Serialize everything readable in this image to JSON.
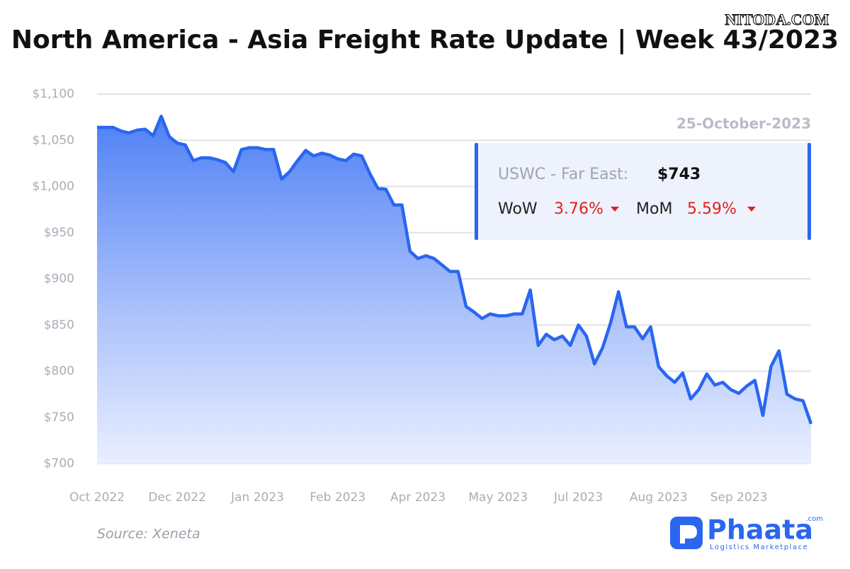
{
  "chart_data": {
    "type": "area",
    "title": "North America - Asia Freight Rate Update | Week 43/2023",
    "categories": [
      "Oct 2022",
      null,
      null,
      null,
      null,
      null,
      null,
      null,
      null,
      null,
      "Dec 2022",
      null,
      null,
      null,
      null,
      null,
      null,
      null,
      null,
      null,
      "Jan 2023",
      null,
      null,
      null,
      null,
      null,
      null,
      null,
      null,
      null,
      "Feb 2023",
      null,
      null,
      null,
      null,
      null,
      null,
      null,
      null,
      null,
      "Apr 2023",
      null,
      null,
      null,
      null,
      null,
      null,
      null,
      null,
      null,
      "May 2023",
      null,
      null,
      null,
      null,
      null,
      null,
      null,
      null,
      null,
      "Jul 2023",
      null,
      null,
      null,
      null,
      null,
      null,
      null,
      null,
      null,
      "Aug 2023",
      null,
      null,
      null,
      null,
      null,
      null,
      null,
      null,
      null,
      "Sep 2023",
      null,
      null,
      null,
      null,
      null,
      null,
      null,
      null,
      null
    ],
    "values": [
      1064,
      1064,
      1064,
      1060,
      1058,
      1061,
      1062,
      1055,
      1076,
      1054,
      1047,
      1045,
      1028,
      1031,
      1031,
      1029,
      1026,
      1016,
      1040,
      1042,
      1042,
      1040,
      1040,
      1008,
      1016,
      1028,
      1039,
      1033,
      1036,
      1034,
      1030,
      1028,
      1035,
      1033,
      1014,
      998,
      997,
      980,
      980,
      930,
      922,
      925,
      922,
      915,
      908,
      908,
      870,
      864,
      857,
      862,
      860,
      860,
      862,
      862,
      888,
      828,
      840,
      834,
      838,
      828,
      850,
      838,
      808,
      825,
      852,
      886,
      848,
      848,
      835,
      848,
      805,
      795,
      788,
      798,
      770,
      780,
      797,
      785,
      788,
      780,
      776,
      784,
      790,
      752,
      805,
      822,
      775,
      770,
      768,
      743
    ],
    "color": "#2a66f0",
    "ylim": [
      700,
      1100
    ],
    "yticks": [
      {
        "value": 700,
        "label": "$700"
      },
      {
        "value": 750,
        "label": "$750"
      },
      {
        "value": 800,
        "label": "$800"
      },
      {
        "value": 850,
        "label": "$850"
      },
      {
        "value": 900,
        "label": "$900"
      },
      {
        "value": 950,
        "label": "$950"
      },
      {
        "value": 1000,
        "label": "$1,000"
      },
      {
        "value": 1050,
        "label": "$1,050"
      },
      {
        "value": 1100,
        "label": "$1,100"
      }
    ],
    "grid": true,
    "info": {
      "date": "25-October-2023",
      "route": "USWC - Far East:",
      "rate": "$743",
      "wow_label": "WoW",
      "wow": "3.76%",
      "mom_label": "MoM",
      "mom": "5.59%"
    },
    "source": "Source: Xeneta",
    "watermark": "NITODA.COM",
    "brand": {
      "name": "Phaata",
      "suffix": ".com",
      "tagline": "Logistics Marketplace"
    }
  }
}
